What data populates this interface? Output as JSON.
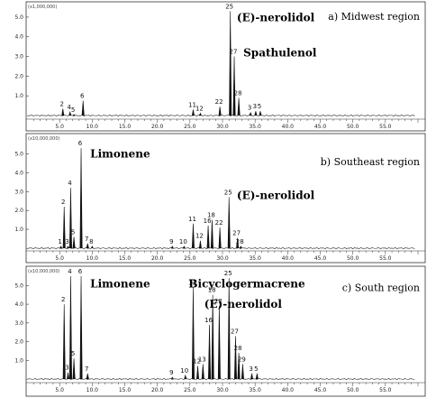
{
  "chart_data": [
    {
      "type": "line",
      "title": "a) Midwest region",
      "scale_label": "(x1,000,000)",
      "xlim": [
        0,
        60
      ],
      "ylim": [
        0,
        5.5
      ],
      "x_ticks": [
        "5.0",
        "10.0",
        "15.0",
        "20.0",
        "25.0",
        "30.0",
        "35.0",
        "40.0",
        "45.0",
        "50.0",
        "55.0"
      ],
      "y_ticks": [
        "1.0",
        "2.0",
        "3.0",
        "4.0",
        "5.0"
      ],
      "peaks": [
        {
          "label": "2",
          "x": 5.5,
          "y": 0.35
        },
        {
          "label": "4",
          "x": 6.6,
          "y": 0.18
        },
        {
          "label": "5",
          "x": 7.2,
          "y": 0.05
        },
        {
          "label": "6",
          "x": 8.6,
          "y": 0.75
        },
        {
          "label": "11",
          "x": 25.5,
          "y": 0.3
        },
        {
          "label": "12",
          "x": 26.6,
          "y": 0.12
        },
        {
          "label": "22",
          "x": 29.6,
          "y": 0.45
        },
        {
          "label": "25",
          "x": 31.2,
          "y": 5.3
        },
        {
          "label": "27",
          "x": 31.8,
          "y": 3.0
        },
        {
          "label": "28",
          "x": 32.5,
          "y": 0.9
        },
        {
          "label": "3",
          "x": 34.3,
          "y": 0.15
        },
        {
          "label": "3",
          "x": 35.1,
          "y": 0.22
        },
        {
          "label": "5",
          "x": 35.8,
          "y": 0.22
        }
      ],
      "annotations": [
        {
          "text": "(E)-nerolidol",
          "x": 32.2,
          "y": 4.8
        },
        {
          "text": "Spathulenol",
          "x": 33.2,
          "y": 3.0
        }
      ]
    },
    {
      "type": "line",
      "title": "b) Southeast region",
      "scale_label": "(x10,000,000)",
      "xlim": [
        0,
        60
      ],
      "ylim": [
        0,
        5.5
      ],
      "x_ticks": [
        "5.0",
        "10.0",
        "15.0",
        "20.0",
        "25.0",
        "30.0",
        "35.0",
        "40.0",
        "45.0",
        "50.0",
        "55.0"
      ],
      "y_ticks": [
        "1.0",
        "2.0",
        "3.0",
        "4.0",
        "5.0"
      ],
      "peaks": [
        {
          "label": "1",
          "x": 5.2,
          "y": 0.1
        },
        {
          "label": "2",
          "x": 5.7,
          "y": 2.2
        },
        {
          "label": "3",
          "x": 6.3,
          "y": 0.1
        },
        {
          "label": "4",
          "x": 6.7,
          "y": 3.2
        },
        {
          "label": "5",
          "x": 7.2,
          "y": 0.6
        },
        {
          "label": "6",
          "x": 8.3,
          "y": 5.3
        },
        {
          "label": "7",
          "x": 9.3,
          "y": 0.25
        },
        {
          "label": "8",
          "x": 10.0,
          "y": 0.1
        },
        {
          "label": "9",
          "x": 22.3,
          "y": 0.1
        },
        {
          "label": "10",
          "x": 24.1,
          "y": 0.1
        },
        {
          "label": "11",
          "x": 25.5,
          "y": 1.3
        },
        {
          "label": "12",
          "x": 26.6,
          "y": 0.4
        },
        {
          "label": "16",
          "x": 27.8,
          "y": 1.2
        },
        {
          "label": "18",
          "x": 28.4,
          "y": 1.5
        },
        {
          "label": "22",
          "x": 29.6,
          "y": 1.1
        },
        {
          "label": "25",
          "x": 31.0,
          "y": 2.7
        },
        {
          "label": "27",
          "x": 32.3,
          "y": 0.55
        },
        {
          "label": "28",
          "x": 32.8,
          "y": 0.1
        }
      ],
      "annotations": [
        {
          "text": "Limonene",
          "x": 9.7,
          "y": 4.8
        },
        {
          "text": "(E)-nerolidol",
          "x": 32.2,
          "y": 2.6
        }
      ]
    },
    {
      "type": "line",
      "title": "c) South region",
      "scale_label": "(x10,000,000)",
      "xlim": [
        0,
        60
      ],
      "ylim": [
        0,
        5.5
      ],
      "x_ticks": [
        "5.0",
        "10.0",
        "15.0",
        "20.0",
        "25.0",
        "30.0",
        "35.0",
        "40.0",
        "45.0",
        "50.0",
        "55.0"
      ],
      "y_ticks": [
        "1.0",
        "2.0",
        "3.0",
        "4.0",
        "5.0"
      ],
      "peaks": [
        {
          "label": "2",
          "x": 5.7,
          "y": 4.0
        },
        {
          "label": "3",
          "x": 6.3,
          "y": 0.35
        },
        {
          "label": "4",
          "x": 6.7,
          "y": 5.5
        },
        {
          "label": "5",
          "x": 7.2,
          "y": 1.1
        },
        {
          "label": "6",
          "x": 8.3,
          "y": 5.5
        },
        {
          "label": "7",
          "x": 9.3,
          "y": 0.3
        },
        {
          "label": "9",
          "x": 22.3,
          "y": 0.1
        },
        {
          "label": "10",
          "x": 24.3,
          "y": 0.2
        },
        {
          "label": "11",
          "x": 25.5,
          "y": 4.9
        },
        {
          "label": "12",
          "x": 26.2,
          "y": 0.7
        },
        {
          "label": "13",
          "x": 27.0,
          "y": 0.8
        },
        {
          "label": "16",
          "x": 28.0,
          "y": 2.9
        },
        {
          "label": "18",
          "x": 28.5,
          "y": 4.5
        },
        {
          "label": "22",
          "x": 29.5,
          "y": 3.9
        },
        {
          "label": "25",
          "x": 31.0,
          "y": 5.4
        },
        {
          "label": "27",
          "x": 32.0,
          "y": 2.3
        },
        {
          "label": "28",
          "x": 32.5,
          "y": 1.4
        },
        {
          "label": "29",
          "x": 33.1,
          "y": 0.8
        },
        {
          "label": "3",
          "x": 34.5,
          "y": 0.3
        },
        {
          "label": "5",
          "x": 35.3,
          "y": 0.3
        }
      ],
      "annotations": [
        {
          "text": "Limonene",
          "x": 9.7,
          "y": 4.9
        },
        {
          "text": "Bicyclogermacrene",
          "x": 24.8,
          "y": 4.9
        },
        {
          "text": "(E)-nerolidol",
          "x": 27.2,
          "y": 3.8
        }
      ]
    }
  ]
}
